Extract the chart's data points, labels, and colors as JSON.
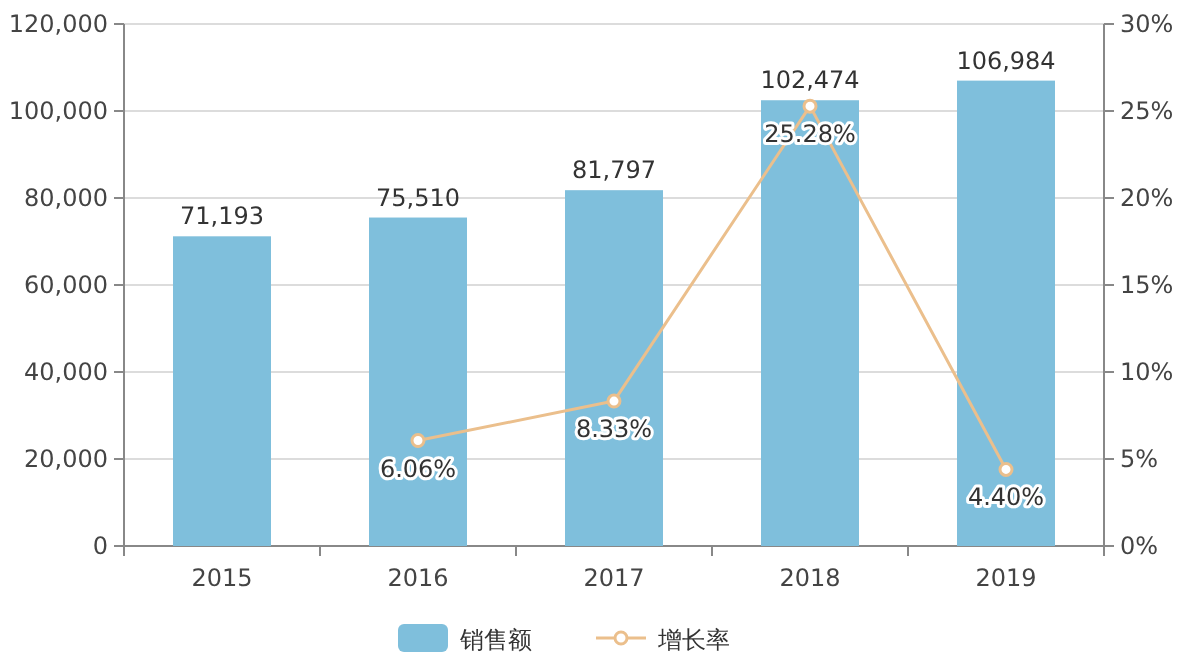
{
  "chart_data": {
    "type": "bar",
    "categories": [
      "2015",
      "2016",
      "2017",
      "2018",
      "2019"
    ],
    "series": [
      {
        "name": "销售额",
        "color": "#7fbfdc",
        "values": [
          71193,
          75510,
          81797,
          102474,
          106984
        ],
        "value_labels": [
          "71,193",
          "75,510",
          "81,797",
          "102,474",
          "106,984"
        ]
      },
      {
        "name": "增长率",
        "type": "line",
        "axis": "y2",
        "color": "#ebbf8c",
        "values": [
          null,
          6.06,
          8.33,
          25.28,
          4.4
        ],
        "value_labels": [
          null,
          "6.06%",
          "8.33%",
          "25.28%",
          "4.40%"
        ]
      }
    ],
    "ylim": [
      0,
      120000
    ],
    "yticks": [
      {
        "value": 0,
        "label": "0"
      },
      {
        "value": 20000,
        "label": "20,000"
      },
      {
        "value": 40000,
        "label": "40,000"
      },
      {
        "value": 60000,
        "label": "60,000"
      },
      {
        "value": 80000,
        "label": "80,000"
      },
      {
        "value": 100000,
        "label": "100,000"
      },
      {
        "value": 120000,
        "label": "120,000"
      }
    ],
    "y2lim": [
      0,
      30
    ],
    "y2ticks": [
      {
        "value": 0,
        "label": "0%"
      },
      {
        "value": 5,
        "label": "5%"
      },
      {
        "value": 10,
        "label": "10%"
      },
      {
        "value": 15,
        "label": "15%"
      },
      {
        "value": 20,
        "label": "20%"
      },
      {
        "value": 25,
        "label": "25%"
      },
      {
        "value": 30,
        "label": "30%"
      }
    ],
    "grid": "y",
    "legend": "bottom",
    "marker": "circle"
  }
}
